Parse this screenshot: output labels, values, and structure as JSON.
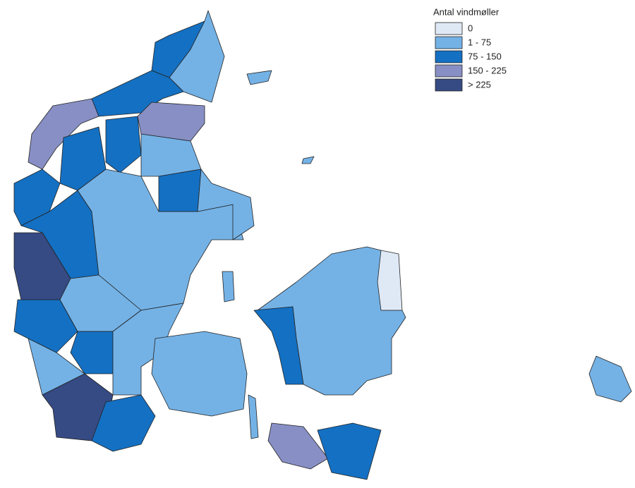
{
  "legend": {
    "title": "Antal vindmøller",
    "items": [
      {
        "label": "0",
        "color": "#dfe9f6"
      },
      {
        "label": "1 - 75",
        "color": "#74b2e6"
      },
      {
        "label": "75 - 150",
        "color": "#1470c2"
      },
      {
        "label": "150 - 225",
        "color": "#878fc4"
      },
      {
        "label": "> 225",
        "color": "#364a84"
      }
    ]
  }
}
